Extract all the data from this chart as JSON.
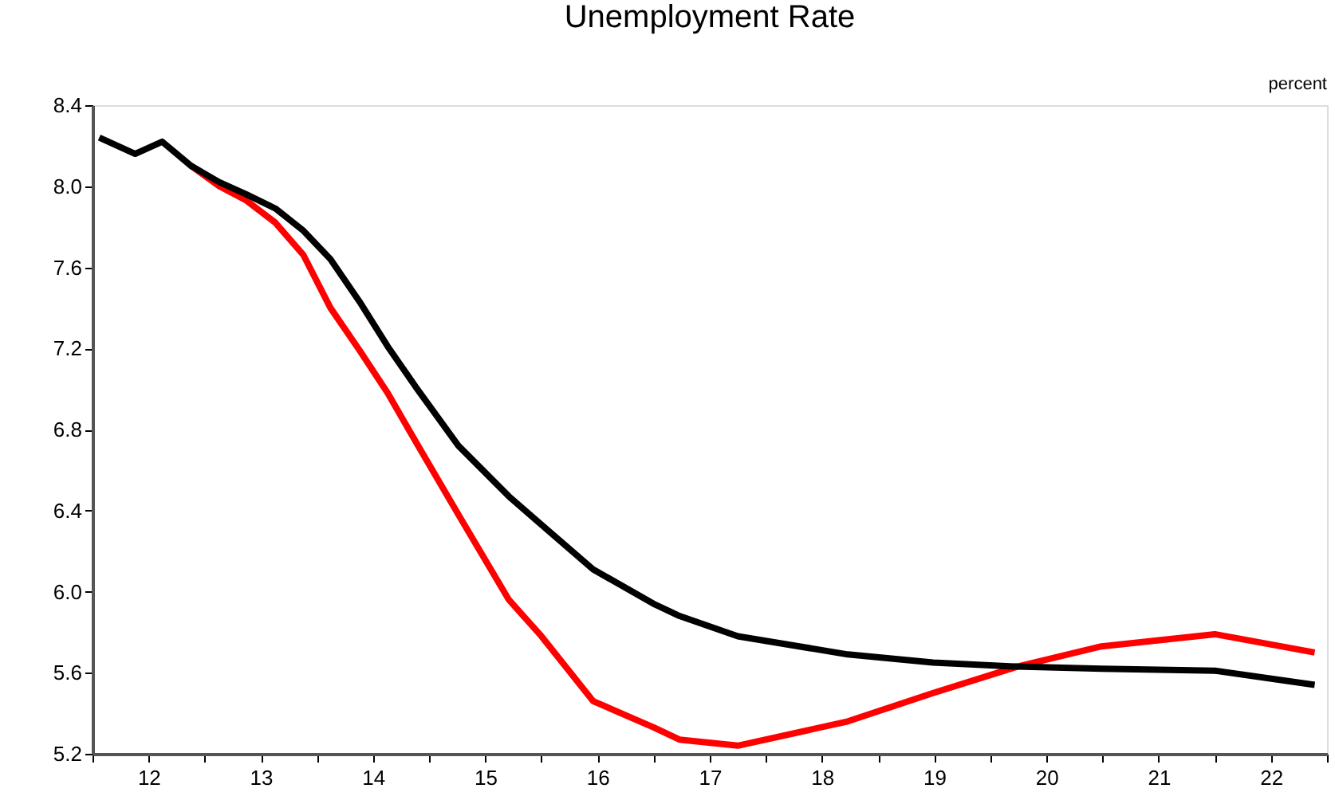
{
  "chart_data": {
    "type": "line",
    "title": "Unemployment Rate",
    "annotations": [
      "percent"
    ],
    "x": [
      11.56,
      11.88,
      12.12,
      12.38,
      12.63,
      12.87,
      13.13,
      13.38,
      13.62,
      13.88,
      14.13,
      14.38,
      14.76,
      15.21,
      15.5,
      15.96,
      16.5,
      16.73,
      17.25,
      18.23,
      18.99,
      19.74,
      20.49,
      21.5,
      22.39
    ],
    "series": [
      {
        "color": "#ff0000",
        "values": [
          null,
          null,
          null,
          8.1,
          8.0,
          7.93,
          7.82,
          7.66,
          7.4,
          7.19,
          6.98,
          6.74,
          6.38,
          5.96,
          5.78,
          5.46,
          5.33,
          5.27,
          5.24,
          5.36,
          5.5,
          5.63,
          5.73,
          5.79,
          5.7
        ]
      },
      {
        "color": "#000000",
        "values": [
          8.24,
          8.16,
          8.22,
          8.1,
          8.02,
          7.96,
          7.89,
          7.78,
          7.64,
          7.43,
          7.21,
          7.01,
          6.72,
          6.47,
          6.33,
          6.11,
          5.94,
          5.88,
          5.78,
          5.69,
          5.65,
          5.63,
          5.62,
          5.61,
          5.54
        ]
      }
    ],
    "xlim": [
      11.5,
      22.5
    ],
    "xticks": [
      {
        "value": 11.5,
        "label": null
      },
      12,
      {
        "value": 12.5,
        "label": null
      },
      13,
      {
        "value": 13.5,
        "label": null
      },
      14,
      {
        "value": 14.5,
        "label": null
      },
      15,
      {
        "value": 15.5,
        "label": null
      },
      16,
      {
        "value": 16.5,
        "label": null
      },
      17,
      {
        "value": 17.5,
        "label": null
      },
      18,
      {
        "value": 18.5,
        "label": null
      },
      19,
      {
        "value": 19.5,
        "label": null
      },
      20,
      {
        "value": 20.5,
        "label": null
      },
      21,
      {
        "value": 21.5,
        "label": null
      },
      22,
      {
        "value": 22.5,
        "label": null
      }
    ],
    "ylim": [
      5.2,
      8.4
    ],
    "yticks": [
      5.2,
      5.6,
      {
        "value": 6,
        "label": "6.0"
      },
      6.4,
      6.8,
      7.2,
      7.6,
      {
        "value": 8,
        "label": "8.0"
      },
      8.4
    ],
    "grid": false,
    "legend": false,
    "marker": "none",
    "line_style": "solid"
  }
}
